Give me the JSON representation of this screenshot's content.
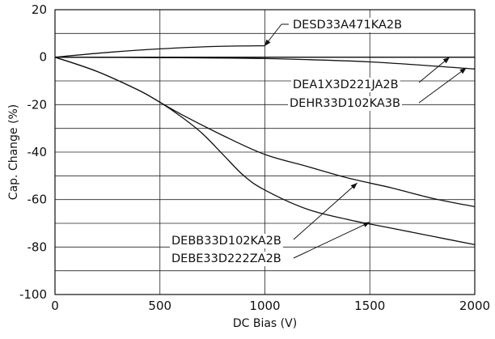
{
  "chart_data": {
    "type": "line",
    "title": "",
    "xlabel": "DC Bias (V)",
    "ylabel": "Cap. Change (%)",
    "xlim": [
      0,
      2000
    ],
    "ylim": [
      -100,
      20
    ],
    "xticks": [
      0,
      500,
      1000,
      1500,
      2000
    ],
    "yticks": [
      20,
      0,
      -20,
      -40,
      -60,
      -80,
      -100
    ],
    "xtick_labels": [
      "0",
      "500",
      "1000",
      "1500",
      "2000"
    ],
    "ytick_labels": [
      "20",
      "0",
      "-20",
      "-40",
      "-60",
      "-80",
      "-100"
    ],
    "grid": true,
    "series": [
      {
        "name": "DESD33A471KA2B",
        "x": [
          0,
          250,
          500,
          750,
          1000
        ],
        "y": [
          0,
          2,
          3.5,
          4.5,
          4.8
        ]
      },
      {
        "name": "DEA1X3D221JA2B",
        "x": [
          0,
          500,
          1000,
          1500,
          2000
        ],
        "y": [
          0,
          0,
          0,
          0,
          0
        ]
      },
      {
        "name": "DEHR33D102KA3B",
        "x": [
          0,
          500,
          1000,
          1500,
          2000
        ],
        "y": [
          0,
          -0.2,
          -0.6,
          -2,
          -5
        ]
      },
      {
        "name": "DEBB33D102KA2B",
        "x": [
          0,
          200,
          400,
          500,
          600,
          800,
          1000,
          1200,
          1400,
          1600,
          1800,
          2000
        ],
        "y": [
          0,
          -6,
          -14,
          -19,
          -24,
          -33,
          -41,
          -46,
          -51,
          -55,
          -59.5,
          -63
        ]
      },
      {
        "name": "DEBE33D222ZA2B",
        "x": [
          0,
          200,
          400,
          500,
          600,
          700,
          800,
          900,
          1000,
          1200,
          1400,
          1600,
          1800,
          2000
        ],
        "y": [
          0,
          -6,
          -14,
          -19,
          -25,
          -32,
          -41,
          -50,
          -56,
          -64,
          -68.5,
          -72,
          -75.5,
          -79
        ]
      }
    ],
    "annotations": [
      {
        "text": "DESD33A471KA2B",
        "series": "DESD33A471KA2B",
        "at_x": 1000,
        "at_y": 4.8
      },
      {
        "text": "DEA1X3D221JA2B",
        "series": "DEA1X3D221JA2B",
        "at_x": 1880,
        "at_y": 0
      },
      {
        "text": "DEHR33D102KA3B",
        "series": "DEHR33D102KA3B",
        "at_x": 1960,
        "at_y": -4.5
      },
      {
        "text": "DEBB33D102KA2B",
        "series": "DEBB33D102KA2B",
        "at_x": 1440,
        "at_y": -53
      },
      {
        "text": "DEBE33D222ZA2B",
        "series": "DEBE33D222ZA2B",
        "at_x": 1500,
        "at_y": -69.5
      }
    ]
  }
}
